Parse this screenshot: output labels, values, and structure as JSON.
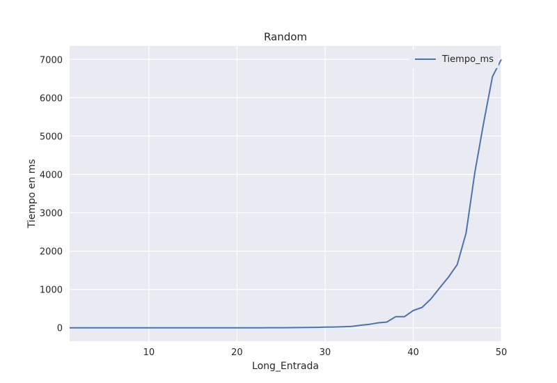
{
  "chart_data": {
    "type": "line",
    "title": "Random",
    "xlabel": "Long_Entrada",
    "ylabel": "Tiempo en ms",
    "xlim": [
      1,
      50
    ],
    "ylim": [
      -350,
      7350
    ],
    "grid": true,
    "legend_position": "top-right",
    "xticks": [
      10,
      20,
      30,
      40,
      50
    ],
    "yticks": [
      0,
      1000,
      2000,
      3000,
      4000,
      5000,
      6000,
      7000
    ],
    "series": [
      {
        "name": "Tiempo_ms",
        "color": "#4c72b0",
        "x": [
          1,
          2,
          3,
          4,
          5,
          6,
          7,
          8,
          9,
          10,
          11,
          12,
          13,
          14,
          15,
          16,
          17,
          18,
          19,
          20,
          21,
          22,
          23,
          24,
          25,
          26,
          27,
          28,
          29,
          30,
          31,
          32,
          33,
          34,
          35,
          36,
          37,
          38,
          39,
          40,
          41,
          42,
          43,
          44,
          45,
          46,
          47,
          48,
          49,
          50
        ],
        "y": [
          0,
          0,
          0,
          0,
          0,
          0,
          0,
          0,
          0,
          0,
          0,
          0,
          0,
          0,
          0,
          0,
          0,
          0,
          0,
          0,
          0,
          1,
          1,
          2,
          3,
          4,
          6,
          8,
          11,
          16,
          20,
          28,
          35,
          65,
          90,
          130,
          150,
          290,
          290,
          450,
          530,
          750,
          1040,
          1320,
          1650,
          2470,
          4050,
          5350,
          6550,
          7000
        ]
      }
    ]
  }
}
